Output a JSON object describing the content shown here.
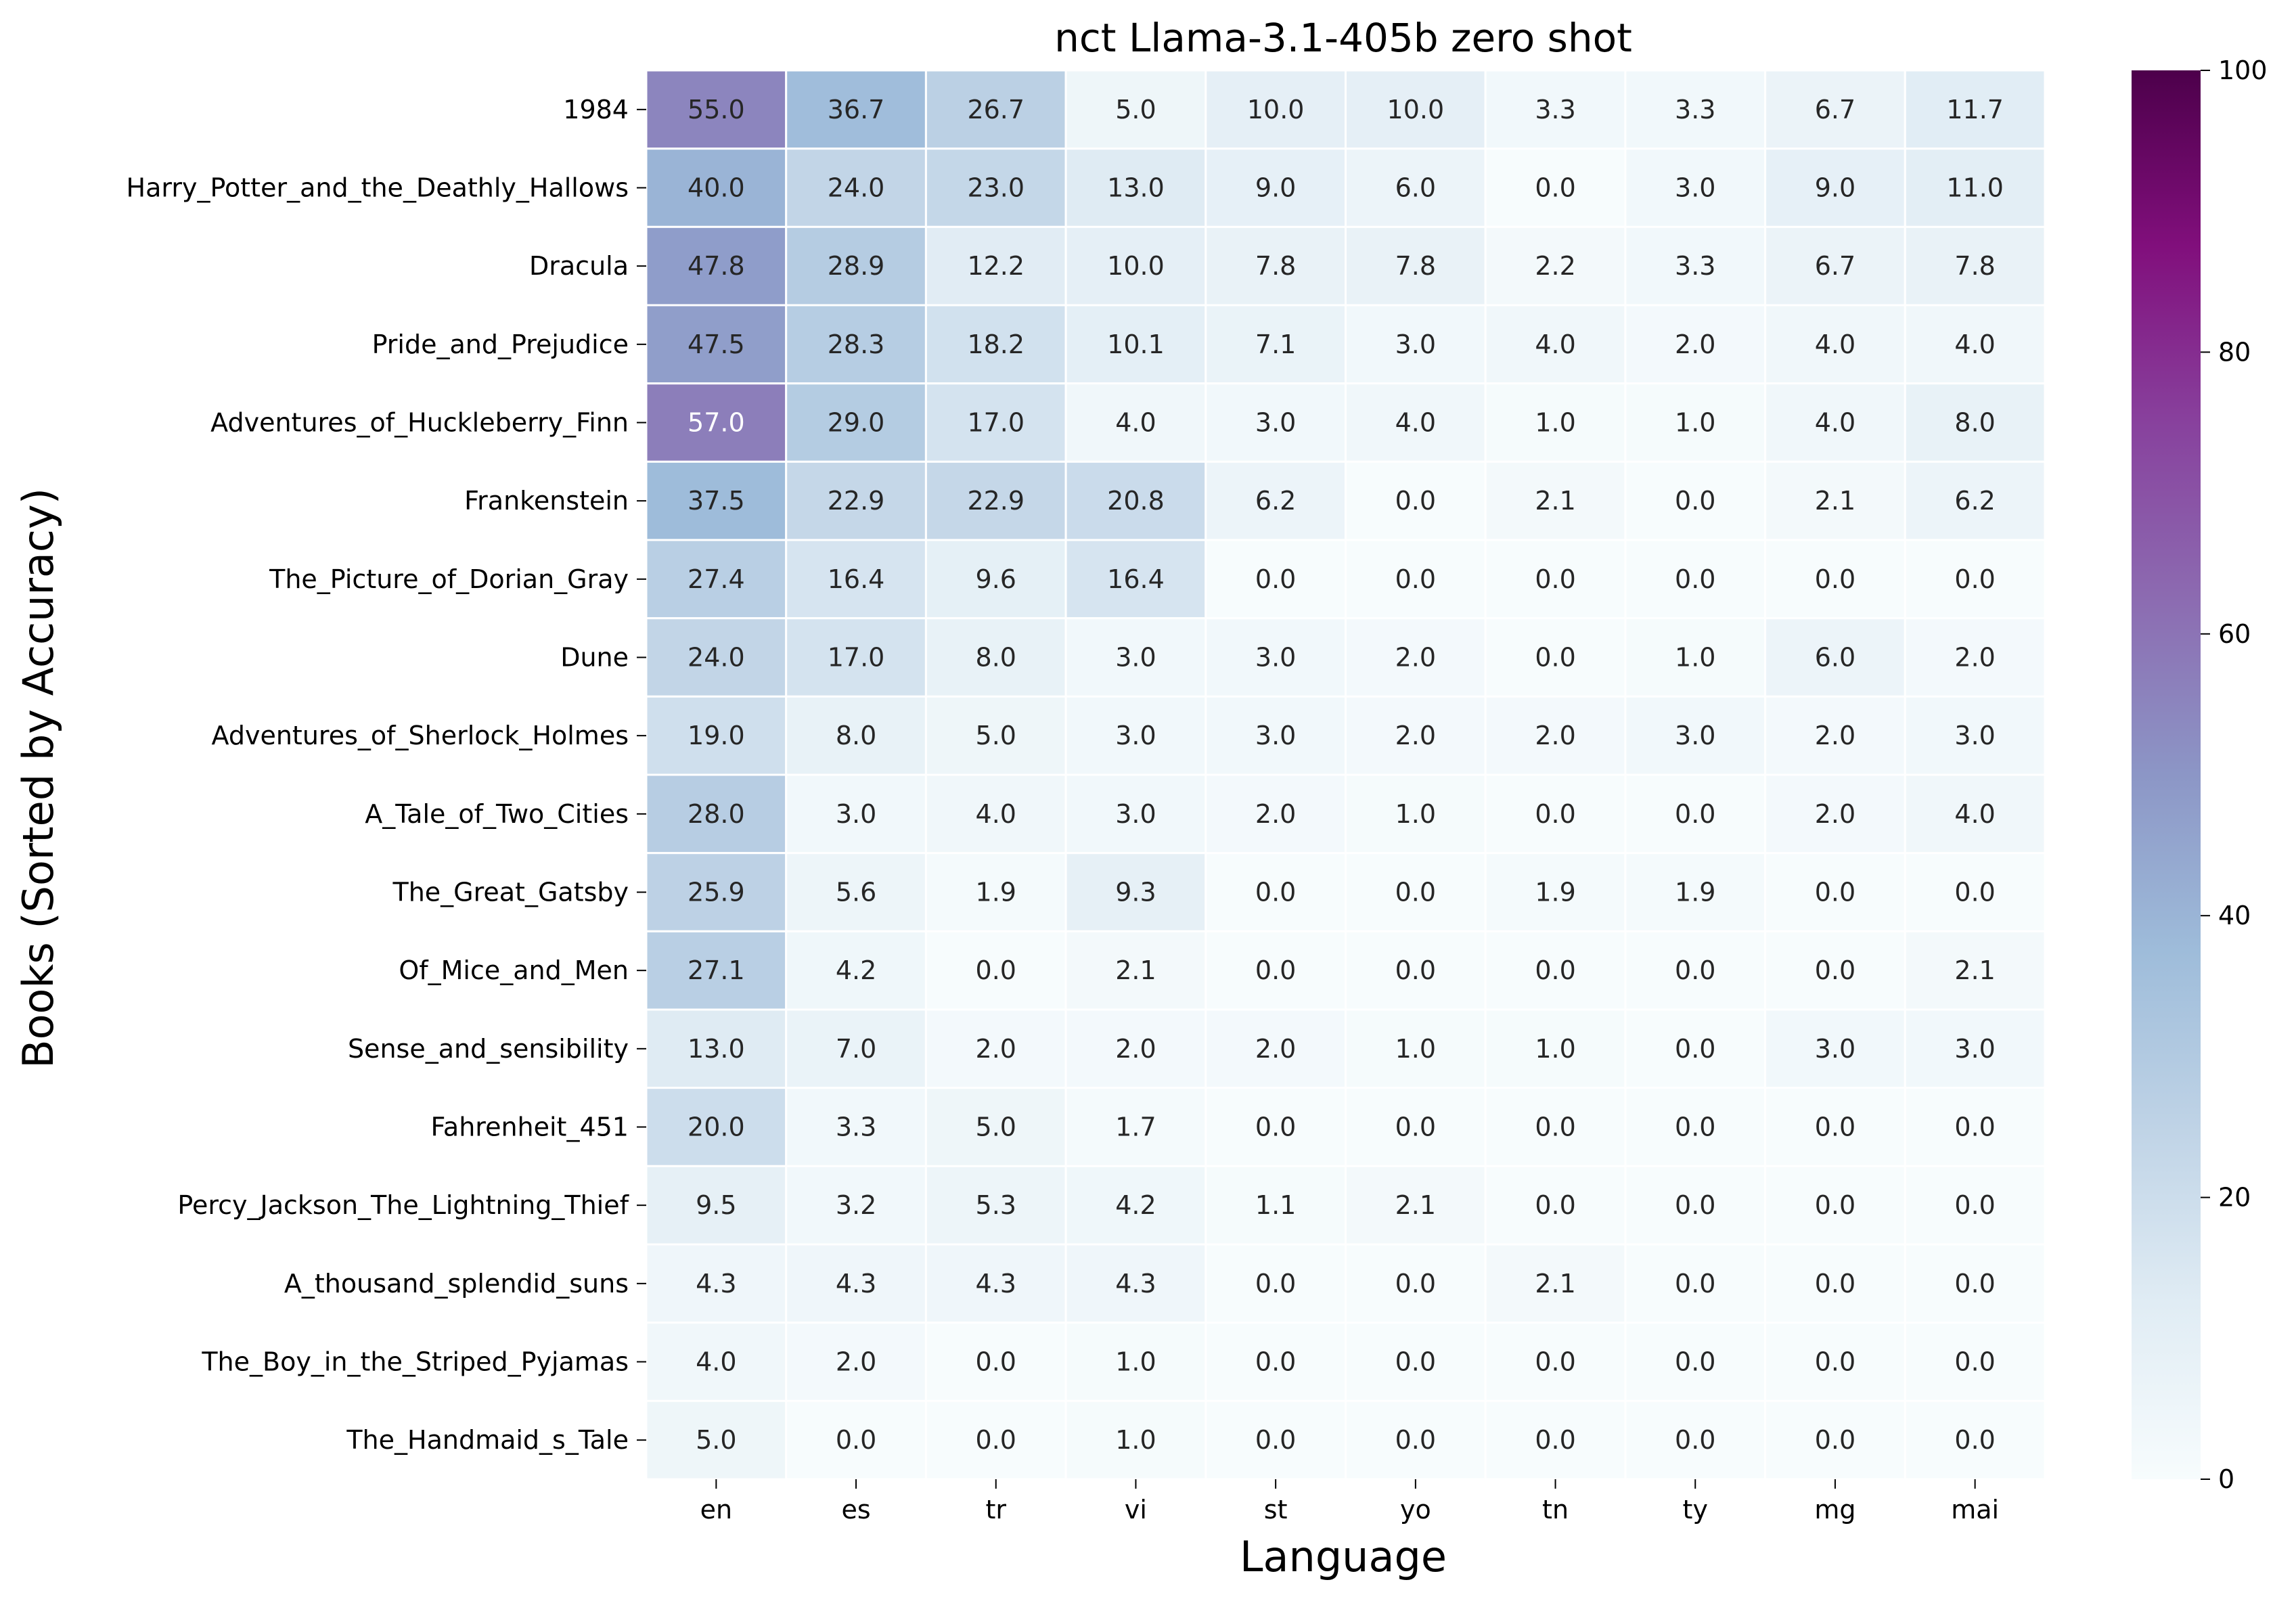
{
  "chart_data": {
    "type": "heatmap",
    "title": "nct Llama-3.1-405b zero shot",
    "xlabel": "Language",
    "ylabel": "Books (Sorted by Accuracy)",
    "columns": [
      "en",
      "es",
      "tr",
      "vi",
      "st",
      "yo",
      "tn",
      "ty",
      "mg",
      "mai"
    ],
    "rows": [
      "1984",
      "Harry_Potter_and_the_Deathly_Hallows",
      "Dracula",
      "Pride_and_Prejudice",
      "Adventures_of_Huckleberry_Finn",
      "Frankenstein",
      "The_Picture_of_Dorian_Gray",
      "Dune",
      "Adventures_of_Sherlock_Holmes",
      "A_Tale_of_Two_Cities",
      "The_Great_Gatsby",
      "Of_Mice_and_Men",
      "Sense_and_sensibility",
      "Fahrenheit_451",
      "Percy_Jackson_The_Lightning_Thief",
      "A_thousand_splendid_suns",
      "The_Boy_in_the_Striped_Pyjamas",
      "The_Handmaid_s_Tale"
    ],
    "values": [
      [
        55.0,
        36.7,
        26.7,
        5.0,
        10.0,
        10.0,
        3.3,
        3.3,
        6.7,
        11.7
      ],
      [
        40.0,
        24.0,
        23.0,
        13.0,
        9.0,
        6.0,
        0.0,
        3.0,
        9.0,
        11.0
      ],
      [
        47.8,
        28.9,
        12.2,
        10.0,
        7.8,
        7.8,
        2.2,
        3.3,
        6.7,
        7.8
      ],
      [
        47.5,
        28.3,
        18.2,
        10.1,
        7.1,
        3.0,
        4.0,
        2.0,
        4.0,
        4.0
      ],
      [
        57.0,
        29.0,
        17.0,
        4.0,
        3.0,
        4.0,
        1.0,
        1.0,
        4.0,
        8.0
      ],
      [
        37.5,
        22.9,
        22.9,
        20.8,
        6.2,
        0.0,
        2.1,
        0.0,
        2.1,
        6.2
      ],
      [
        27.4,
        16.4,
        9.6,
        16.4,
        0.0,
        0.0,
        0.0,
        0.0,
        0.0,
        0.0
      ],
      [
        24.0,
        17.0,
        8.0,
        3.0,
        3.0,
        2.0,
        0.0,
        1.0,
        6.0,
        2.0
      ],
      [
        19.0,
        8.0,
        5.0,
        3.0,
        3.0,
        2.0,
        2.0,
        3.0,
        2.0,
        3.0
      ],
      [
        28.0,
        3.0,
        4.0,
        3.0,
        2.0,
        1.0,
        0.0,
        0.0,
        2.0,
        4.0
      ],
      [
        25.9,
        5.6,
        1.9,
        9.3,
        0.0,
        0.0,
        1.9,
        1.9,
        0.0,
        0.0
      ],
      [
        27.1,
        4.2,
        0.0,
        2.1,
        0.0,
        0.0,
        0.0,
        0.0,
        0.0,
        2.1
      ],
      [
        13.0,
        7.0,
        2.0,
        2.0,
        2.0,
        1.0,
        1.0,
        0.0,
        3.0,
        3.0
      ],
      [
        20.0,
        3.3,
        5.0,
        1.7,
        0.0,
        0.0,
        0.0,
        0.0,
        0.0,
        0.0
      ],
      [
        9.5,
        3.2,
        5.3,
        4.2,
        1.1,
        2.1,
        0.0,
        0.0,
        0.0,
        0.0
      ],
      [
        4.3,
        4.3,
        4.3,
        4.3,
        0.0,
        0.0,
        2.1,
        0.0,
        0.0,
        0.0
      ],
      [
        4.0,
        2.0,
        0.0,
        1.0,
        0.0,
        0.0,
        0.0,
        0.0,
        0.0,
        0.0
      ],
      [
        5.0,
        0.0,
        0.0,
        1.0,
        0.0,
        0.0,
        0.0,
        0.0,
        0.0,
        0.0
      ]
    ],
    "vmin": 0,
    "vmax": 100,
    "colorbar_ticks": [
      "0",
      "20",
      "40",
      "60",
      "80",
      "100"
    ],
    "colormap": "BuPu",
    "colormap_stops": [
      "#f7fcfd",
      "#e0ecf4",
      "#bfd3e6",
      "#9ebcda",
      "#8c96c6",
      "#8c6bb1",
      "#88419d",
      "#810f7c",
      "#4d004b"
    ],
    "cell_text_colors": {
      "dark": "#262626",
      "light": "#ffffff"
    },
    "cell_border_color": "#ffffff"
  }
}
